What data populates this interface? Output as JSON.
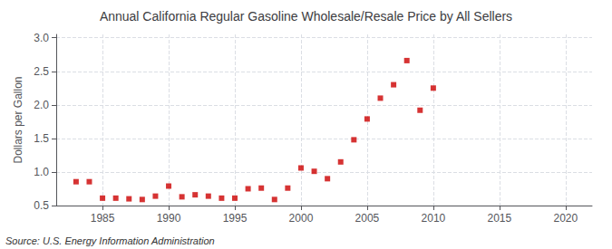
{
  "chart_data": {
    "type": "scatter",
    "title": "Annual California Regular Gasoline Wholesale/Resale Price by All Sellers",
    "ylabel": "Dollars per Gallon",
    "annotation": "Source: U.S. Energy Information Administration",
    "x": [
      1983,
      1984,
      1985,
      1986,
      1987,
      1988,
      1989,
      1990,
      1991,
      1992,
      1993,
      1994,
      1995,
      1996,
      1997,
      1998,
      1999,
      2000,
      2001,
      2002,
      2003,
      2004,
      2005,
      2006,
      2007,
      2008,
      2009,
      2010
    ],
    "values": [
      0.855,
      0.855,
      0.61,
      0.61,
      0.6,
      0.59,
      0.64,
      0.79,
      0.63,
      0.66,
      0.64,
      0.61,
      0.61,
      0.75,
      0.76,
      0.59,
      0.76,
      1.06,
      1.01,
      0.9,
      1.15,
      1.48,
      1.79,
      2.1,
      2.3,
      2.66,
      1.92,
      2.25
    ],
    "color": "#cc0000",
    "marker": "square",
    "xlim": [
      1981.5,
      2022
    ],
    "xticks": [
      1985,
      1990,
      1995,
      2000,
      2005,
      2010,
      2015,
      2020
    ],
    "ylim": [
      0.5,
      3.05
    ],
    "yticks": [
      0.5,
      {
        "value": 1,
        "label": "1.0"
      },
      1.5,
      {
        "value": 2,
        "label": "2.0"
      },
      2.5,
      {
        "value": 3,
        "label": "3.0"
      }
    ],
    "grid": true
  }
}
